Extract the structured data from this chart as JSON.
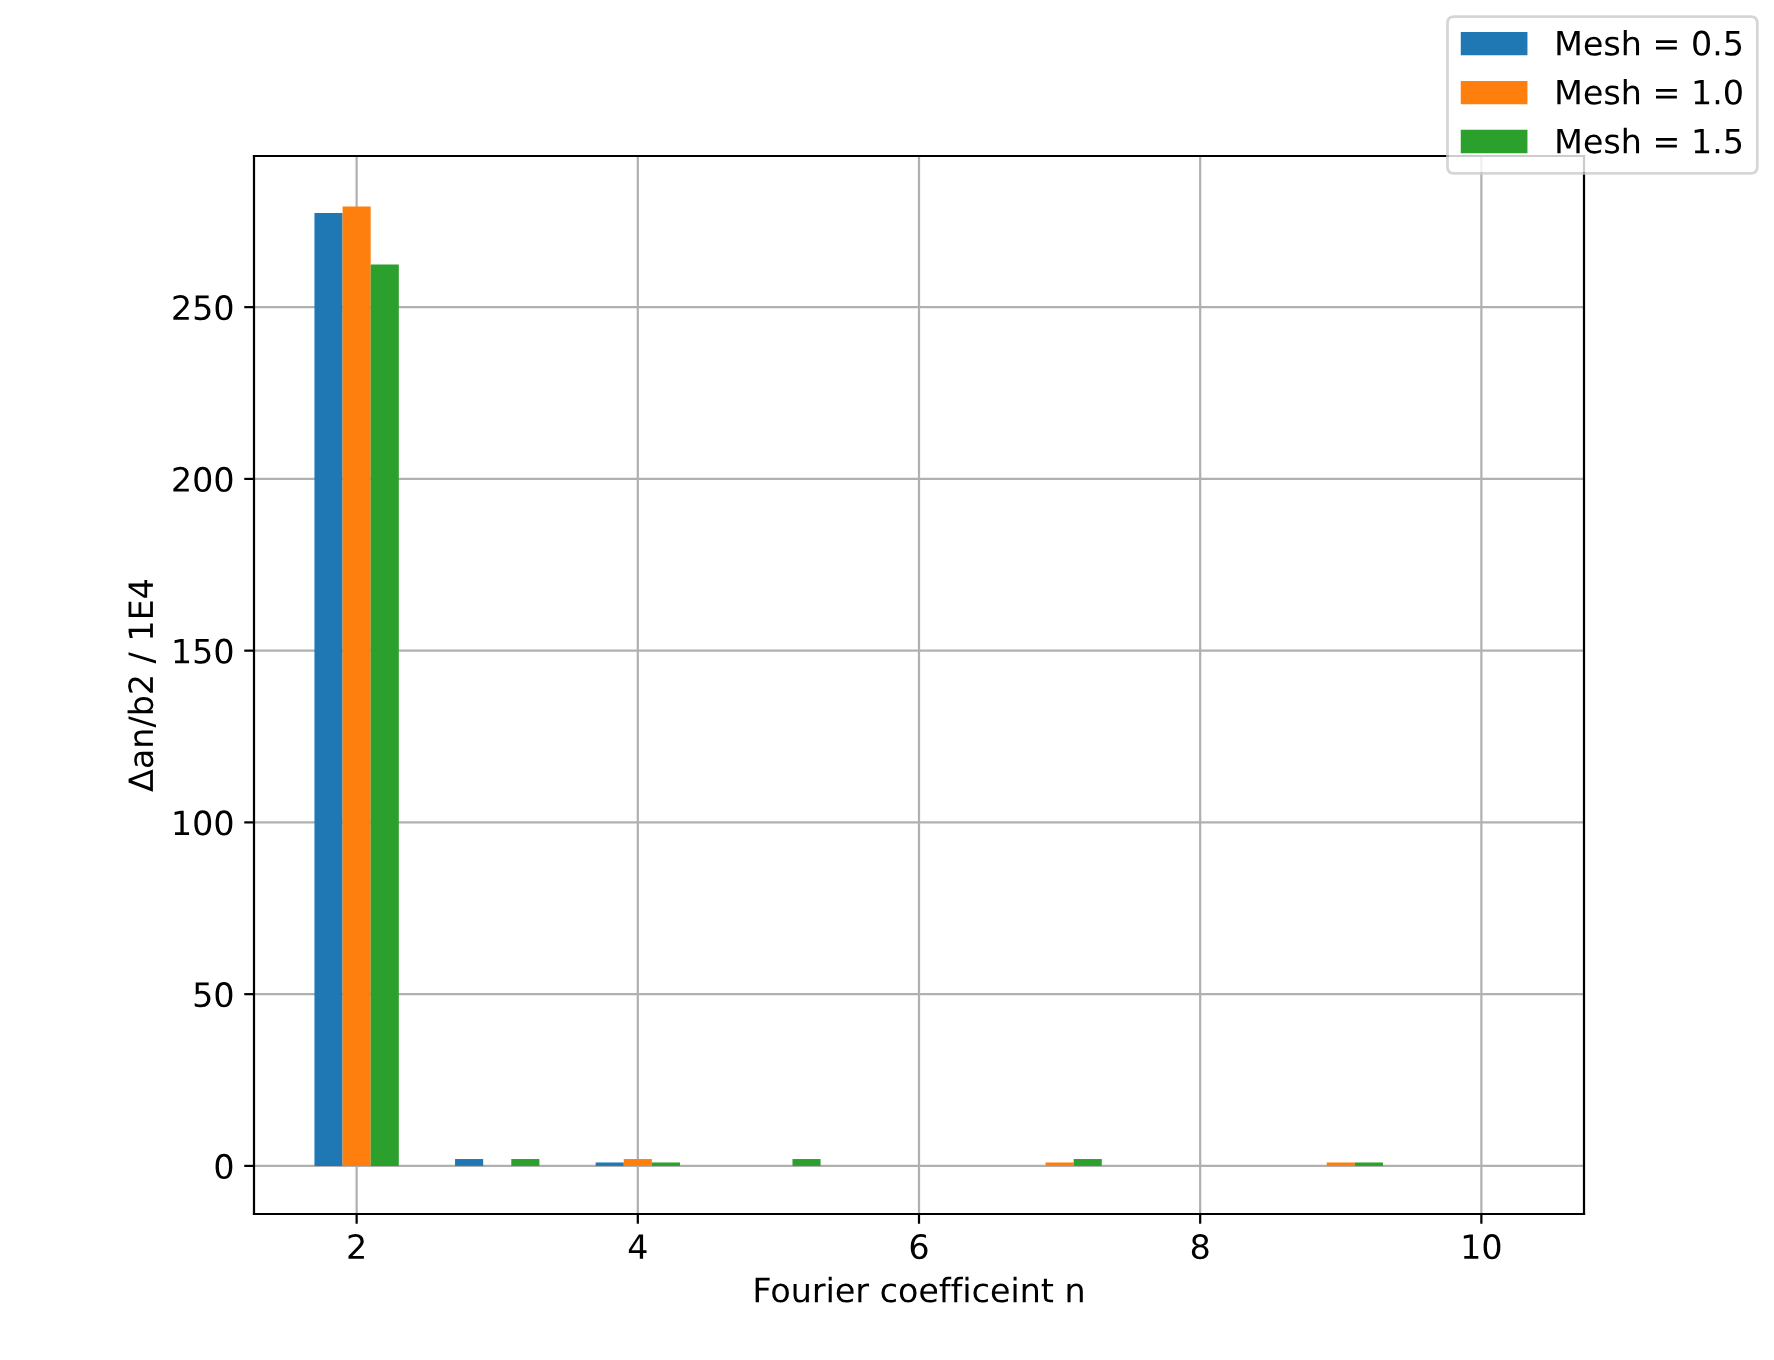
{
  "chart_data": {
    "type": "bar",
    "xlabel": "Fourier coefficeint n",
    "ylabel": "Δan/b2 / 1E4",
    "x": [
      2,
      3,
      4,
      5,
      6,
      7,
      8,
      9,
      10
    ],
    "series": [
      {
        "name": "Mesh = 0.5",
        "color": "#1f77b4",
        "values": [
          277.4,
          2,
          1,
          0,
          0,
          0,
          0,
          0,
          0
        ]
      },
      {
        "name": "Mesh = 1.0",
        "color": "#ff7f0e",
        "values": [
          279.3,
          0,
          2,
          0,
          0,
          1,
          0,
          1,
          0
        ]
      },
      {
        "name": "Mesh = 1.5",
        "color": "#2ca02c",
        "values": [
          262.4,
          2,
          1,
          2,
          0,
          2,
          0,
          1,
          0
        ]
      }
    ],
    "xlim": [
      1.27,
      10.73
    ],
    "xticks": [
      2,
      4,
      6,
      8,
      10
    ],
    "ylim": [
      -14,
      294
    ],
    "yticks": [
      0,
      50,
      100,
      150,
      200,
      250
    ],
    "grid": true,
    "legend": "top right"
  }
}
